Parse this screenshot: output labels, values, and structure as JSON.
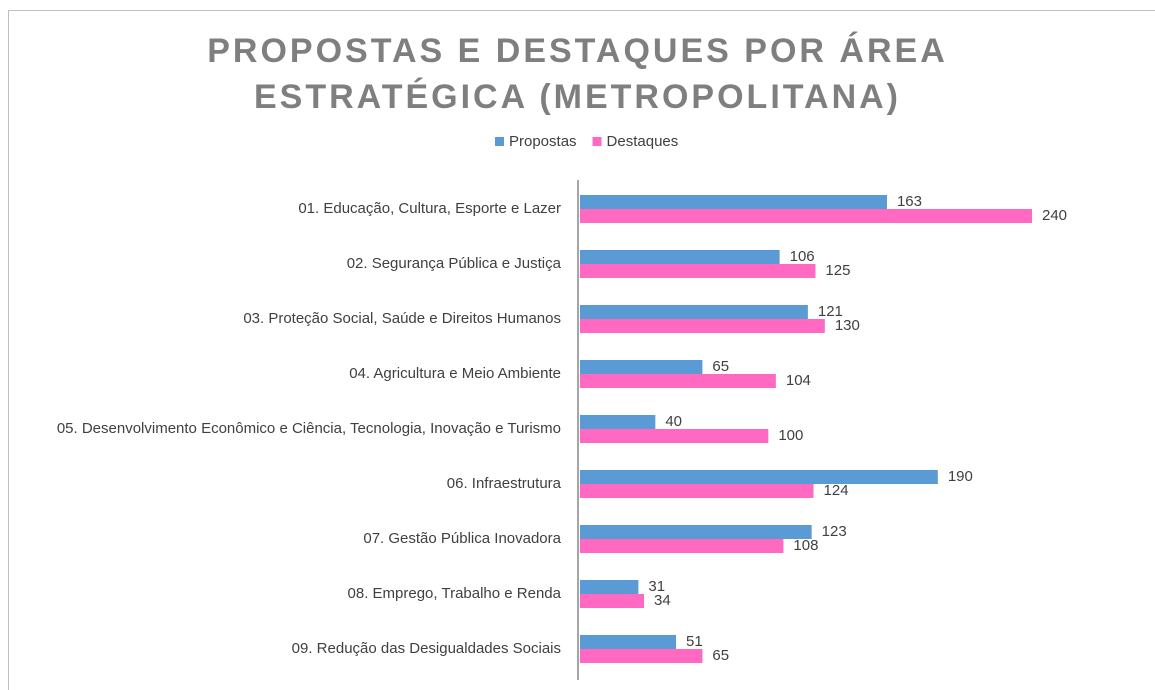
{
  "chart_data": {
    "type": "hbar",
    "title": "PROPOSTAS E DESTAQUES POR ÁREA ESTRATÉGICA (METROPOLITANA)",
    "categories": [
      "01. Educação, Cultura, Esporte e Lazer",
      "02. Segurança  Pública e Justiça",
      "03. Proteção Social, Saúde e Direitos Humanos",
      "04. Agricultura e Meio Ambiente",
      "05. Desenvolvimento Econômico e Ciência, Tecnologia, Inovação e Turismo",
      "06. Infraestrutura",
      "07. Gestão Pública Inovadora",
      "08. Emprego, Trabalho e Renda",
      "09. Redução das Desigualdades Sociais"
    ],
    "series": [
      {
        "name": "Propostas",
        "color": "#5b9bd5",
        "values": [
          163,
          106,
          121,
          65,
          40,
          190,
          123,
          31,
          51
        ]
      },
      {
        "name": "Destaques",
        "color": "#ff69c2",
        "values": [
          240,
          125,
          130,
          104,
          100,
          124,
          108,
          34,
          65
        ]
      }
    ],
    "xlim": [
      0,
      300
    ],
    "legend": "top"
  }
}
